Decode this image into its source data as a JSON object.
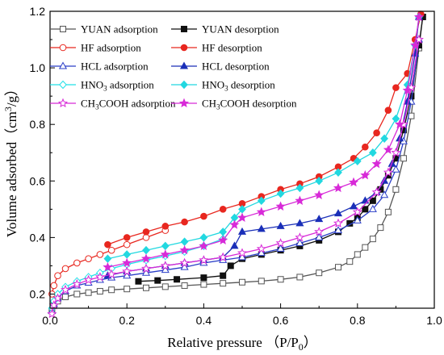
{
  "chart_data": {
    "type": "line",
    "xlabel": "Relative pressure （P/P",
    "xlabel_sub": "0",
    "xlabel_end": "）",
    "ylabel": "Volume adsorbed（cm",
    "ylabel_sup": "3",
    "ylabel_end": "/g）",
    "xlim": [
      0.0,
      1.0
    ],
    "ylim": [
      0.15,
      1.2
    ],
    "xticks": [
      {
        "value": 0.0,
        "label": "0.0"
      },
      {
        "value": 0.2,
        "label": "0.2"
      },
      {
        "value": 0.4,
        "label": "0.4"
      },
      {
        "value": 0.6,
        "label": "0.6"
      },
      {
        "value": 0.8,
        "label": "0.8"
      },
      {
        "value": 1.0,
        "label": "1.0"
      }
    ],
    "yticks": [
      {
        "value": 0.2,
        "label": "0.2"
      },
      {
        "value": 0.4,
        "label": "0.4"
      },
      {
        "value": 0.6,
        "label": "0.6"
      },
      {
        "value": 0.8,
        "label": "0.8"
      },
      {
        "value": 1.0,
        "label": "1.0"
      },
      {
        "value": 1.2,
        "label": "1.2"
      }
    ],
    "grid": false,
    "legend_placement": "top-left",
    "series": [
      {
        "name": "YUAN adsorption",
        "name_main": "YUAN adsorption",
        "name_sub": "",
        "name_rest": "",
        "color": "#555555",
        "marker": "square-open",
        "x": [
          0.005,
          0.01,
          0.02,
          0.04,
          0.07,
          0.1,
          0.13,
          0.16,
          0.2,
          0.25,
          0.3,
          0.35,
          0.4,
          0.45,
          0.5,
          0.55,
          0.6,
          0.65,
          0.7,
          0.75,
          0.78,
          0.8,
          0.82,
          0.84,
          0.86,
          0.88,
          0.9,
          0.92,
          0.94,
          0.96,
          0.97
        ],
        "y": [
          0.14,
          0.16,
          0.175,
          0.19,
          0.2,
          0.205,
          0.21,
          0.215,
          0.218,
          0.222,
          0.226,
          0.23,
          0.234,
          0.238,
          0.242,
          0.246,
          0.252,
          0.26,
          0.275,
          0.295,
          0.315,
          0.34,
          0.365,
          0.395,
          0.435,
          0.49,
          0.57,
          0.68,
          0.83,
          1.07,
          1.18
        ]
      },
      {
        "name": "YUAN desorption",
        "name_main": "YUAN desorption",
        "name_sub": "",
        "name_rest": "",
        "color": "#111111",
        "marker": "square-filled",
        "x": [
          0.97,
          0.96,
          0.94,
          0.92,
          0.9,
          0.88,
          0.86,
          0.84,
          0.82,
          0.8,
          0.78,
          0.75,
          0.7,
          0.65,
          0.6,
          0.55,
          0.5,
          0.47,
          0.45,
          0.4,
          0.33,
          0.28,
          0.23
        ],
        "y": [
          1.18,
          1.08,
          0.9,
          0.78,
          0.68,
          0.62,
          0.57,
          0.53,
          0.5,
          0.47,
          0.45,
          0.42,
          0.39,
          0.37,
          0.355,
          0.34,
          0.325,
          0.3,
          0.265,
          0.258,
          0.252,
          0.248,
          0.245
        ]
      },
      {
        "name": "HF adsorption",
        "name_main": "HF adsorption",
        "name_sub": "",
        "name_rest": "",
        "color": "#e8271f",
        "marker": "circle-open",
        "x": [
          0.005,
          0.01,
          0.02,
          0.04,
          0.07,
          0.1,
          0.13,
          0.16,
          0.2,
          0.25,
          0.3
        ],
        "y": [
          0.2,
          0.23,
          0.265,
          0.29,
          0.31,
          0.325,
          0.34,
          0.355,
          0.375,
          0.4,
          0.425
        ]
      },
      {
        "name": "HF desorption",
        "name_main": "HF desorption",
        "name_sub": "",
        "name_rest": "",
        "color": "#e8271f",
        "marker": "circle-filled",
        "x": [
          0.965,
          0.95,
          0.93,
          0.9,
          0.88,
          0.85,
          0.82,
          0.79,
          0.75,
          0.7,
          0.65,
          0.6,
          0.55,
          0.5,
          0.45,
          0.4,
          0.35,
          0.3,
          0.25,
          0.2,
          0.15
        ],
        "y": [
          1.19,
          1.1,
          0.98,
          0.93,
          0.85,
          0.77,
          0.72,
          0.68,
          0.65,
          0.615,
          0.59,
          0.57,
          0.545,
          0.52,
          0.5,
          0.475,
          0.455,
          0.44,
          0.42,
          0.4,
          0.375
        ]
      },
      {
        "name": "HCL adsorption",
        "name_main": "HCL adsorption",
        "name_sub": "",
        "name_rest": "",
        "color": "#2b3fc8",
        "marker": "triangle-open",
        "x": [
          0.005,
          0.01,
          0.02,
          0.04,
          0.07,
          0.1,
          0.13,
          0.16,
          0.2,
          0.25,
          0.3,
          0.35,
          0.4,
          0.45,
          0.5,
          0.55,
          0.6,
          0.65,
          0.7,
          0.75,
          0.8,
          0.84,
          0.87,
          0.9,
          0.92,
          0.94,
          0.96
        ],
        "y": [
          0.14,
          0.165,
          0.185,
          0.21,
          0.23,
          0.24,
          0.25,
          0.258,
          0.265,
          0.275,
          0.285,
          0.295,
          0.31,
          0.32,
          0.33,
          0.345,
          0.36,
          0.38,
          0.4,
          0.425,
          0.46,
          0.5,
          0.55,
          0.64,
          0.74,
          0.88,
          1.1
        ]
      },
      {
        "name": "HCL desorption",
        "name_main": "HCL desorption",
        "name_sub": "",
        "name_rest": "",
        "color": "#1a2fb8",
        "marker": "triangle-filled",
        "x": [
          0.96,
          0.95,
          0.93,
          0.91,
          0.89,
          0.87,
          0.85,
          0.82,
          0.79,
          0.75,
          0.7,
          0.65,
          0.6,
          0.55,
          0.5,
          0.48,
          0.45,
          0.4,
          0.35,
          0.3,
          0.25,
          0.2,
          0.15
        ],
        "y": [
          1.18,
          1.05,
          0.88,
          0.75,
          0.66,
          0.6,
          0.56,
          0.53,
          0.51,
          0.485,
          0.465,
          0.45,
          0.44,
          0.43,
          0.42,
          0.37,
          0.33,
          0.32,
          0.31,
          0.3,
          0.29,
          0.28,
          0.265
        ]
      },
      {
        "name": "HNO3 adsorption",
        "name_main": "HNO",
        "name_sub": "3",
        "name_rest": " adsorption",
        "color": "#22e0e8",
        "marker": "diamond-open",
        "x": [
          0.005,
          0.01,
          0.02,
          0.04,
          0.07,
          0.1,
          0.13,
          0.16,
          0.2,
          0.25,
          0.3,
          0.35,
          0.4,
          0.45
        ],
        "y": [
          0.15,
          0.175,
          0.2,
          0.225,
          0.245,
          0.26,
          0.275,
          0.29,
          0.305,
          0.32,
          0.335,
          0.35,
          0.37,
          0.395
        ]
      },
      {
        "name": "HNO3 desorption",
        "name_main": "HNO",
        "name_sub": "3",
        "name_rest": " desorption",
        "color": "#22d8e0",
        "marker": "diamond-filled",
        "x": [
          0.96,
          0.95,
          0.93,
          0.9,
          0.87,
          0.84,
          0.8,
          0.75,
          0.7,
          0.65,
          0.6,
          0.55,
          0.5,
          0.48,
          0.45,
          0.4,
          0.35,
          0.3,
          0.25,
          0.2,
          0.15
        ],
        "y": [
          1.18,
          1.08,
          0.94,
          0.82,
          0.75,
          0.7,
          0.67,
          0.63,
          0.6,
          0.575,
          0.555,
          0.53,
          0.5,
          0.47,
          0.42,
          0.4,
          0.385,
          0.37,
          0.355,
          0.34,
          0.325
        ]
      },
      {
        "name": "CH3COOH adsorption",
        "name_main": "CH",
        "name_sub": "3",
        "name_rest": "COOH adsorption",
        "color": "#d82ad8",
        "marker": "star-open",
        "x": [
          0.005,
          0.01,
          0.02,
          0.04,
          0.07,
          0.1,
          0.13,
          0.16,
          0.2,
          0.25,
          0.3,
          0.35,
          0.4,
          0.45,
          0.5,
          0.55,
          0.6,
          0.65,
          0.7,
          0.75,
          0.8,
          0.85,
          0.88,
          0.9,
          0.92,
          0.94,
          0.96
        ],
        "y": [
          0.13,
          0.16,
          0.185,
          0.215,
          0.235,
          0.25,
          0.26,
          0.27,
          0.28,
          0.29,
          0.3,
          0.31,
          0.32,
          0.33,
          0.345,
          0.36,
          0.38,
          0.4,
          0.42,
          0.45,
          0.49,
          0.56,
          0.63,
          0.7,
          0.8,
          0.93,
          1.1
        ]
      },
      {
        "name": "CH3COOH desorption",
        "name_main": "CH",
        "name_sub": "3",
        "name_rest": "COOH desorption",
        "color": "#d82ad8",
        "marker": "star-filled",
        "x": [
          0.96,
          0.95,
          0.93,
          0.91,
          0.88,
          0.85,
          0.82,
          0.79,
          0.75,
          0.7,
          0.65,
          0.6,
          0.55,
          0.5,
          0.48,
          0.45,
          0.4,
          0.35,
          0.3,
          0.25,
          0.2,
          0.15
        ],
        "y": [
          1.18,
          1.08,
          0.92,
          0.8,
          0.71,
          0.66,
          0.62,
          0.595,
          0.575,
          0.55,
          0.53,
          0.51,
          0.49,
          0.47,
          0.445,
          0.39,
          0.37,
          0.355,
          0.34,
          0.325,
          0.31,
          0.295
        ]
      }
    ]
  }
}
